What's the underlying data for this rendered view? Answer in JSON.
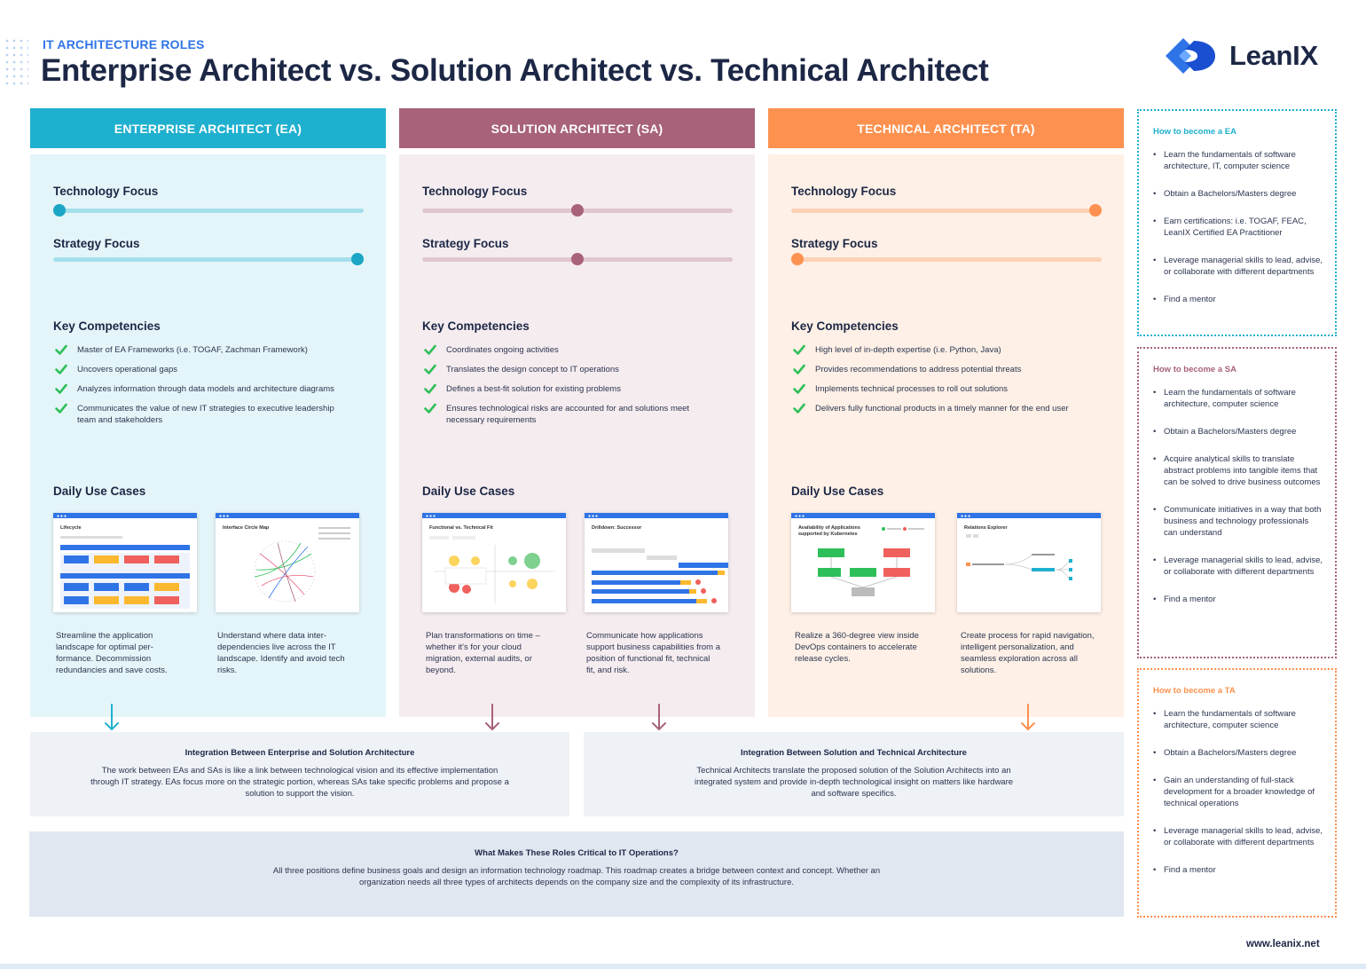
{
  "header": {
    "eyebrow": "IT ARCHITECTURE ROLES",
    "title": "Enterprise Architect vs. Solution Architect vs. Technical Architect",
    "logo_text": "LeanIX"
  },
  "colors": {
    "ea": "#1fb0cf",
    "sa": "#a8627a",
    "ta": "#fd914f",
    "brand": "#2f74e6",
    "navy": "#1c2745"
  },
  "labels": {
    "technology_focus": "Technology Focus",
    "strategy_focus": "Strategy Focus",
    "key_competencies": "Key Competencies",
    "daily_use_cases": "Daily Use Cases"
  },
  "columns": [
    {
      "header": "ENTERPRISE ARCHITECT (EA)",
      "technology_focus": 0,
      "strategy_focus": 1,
      "competencies": [
        "Master of EA Frameworks (i.e. TOGAF, Zachman Framework)",
        "Uncovers operational gaps",
        "Analyzes information through data models and architecture diagrams",
        "Communicates the value of new IT strategies to executive leadership team and stakeholders"
      ],
      "use_cases": [
        {
          "screen_title": "Lifecycle",
          "text": "Streamline the application landscape for optimal per-formance. Decommission redundancies and save costs."
        },
        {
          "screen_title": "Interface Circle Map",
          "text": "Understand where data inter-dependencies live across the IT landscape. Identify and avoid tech risks."
        }
      ]
    },
    {
      "header": "SOLUTION ARCHITECT (SA)",
      "technology_focus": 0.5,
      "strategy_focus": 0.5,
      "competencies": [
        "Coordinates ongoing activities",
        "Translates the design concept to IT operations",
        "Defines a best-fit solution for existing problems",
        "Ensures technological risks are accounted for and solutions meet necessary requirements"
      ],
      "use_cases": [
        {
          "screen_title": "Functional vs. Technical Fit",
          "text": "Plan transformations on time – whether it's for your cloud migration, external audits, or beyond."
        },
        {
          "screen_title": "Drilldown: Successor",
          "text": "Communicate how applications support business capabilities from a position of functional fit, technical fit, and risk."
        }
      ]
    },
    {
      "header": "TECHNICAL ARCHITECT (TA)",
      "technology_focus": 1,
      "strategy_focus": 0,
      "competencies": [
        "High level of in-depth expertise (i.e. Python, Java)",
        "Provides recommendations to address potential threats",
        "Implements technical processes to roll out solutions",
        "Delivers fully functional products in a timely manner for the end user"
      ],
      "use_cases": [
        {
          "screen_title": "Availability of Applications supported by Kubernetes",
          "text": "Realize a 360-degree view inside DevOps containers to accelerate release cycles."
        },
        {
          "screen_title": "Relations Explorer",
          "text": "Create process for rapid navigation, intelligent personalization, and seamless exploration across all solutions."
        }
      ]
    }
  ],
  "integration": [
    {
      "title": "Integration Between Enterprise and Solution Architecture",
      "text": "The work between EAs and SAs is like a link between technological vision and its effective implementation through IT strategy. EAs focus more on the strategic portion, whereas SAs take specific problems and propose a solution to support the vision."
    },
    {
      "title": "Integration Between Solution and Technical Architecture",
      "text": "Technical Architects translate the proposed solution of the Solution Architects into an integrated system and provide in-depth technological insight on matters like hardware and software specifics."
    }
  ],
  "critical": {
    "title": "What Makes These Roles Critical to IT Operations?",
    "text": "All three positions define business goals and design an information technology roadmap. This roadmap creates a bridge between context and concept. Whether an organization needs all three types of architects depends on the company size and the complexity of its infrastructure."
  },
  "sidebar": [
    {
      "title": "How to become a EA",
      "items": [
        "Learn the fundamentals of software architecture, IT, computer science",
        "Obtain a Bachelors/Masters degree",
        "Earn certifications: i.e. TOGAF, FEAC, LeanIX Certified EA Practitioner",
        "Leverage managerial skills to lead, advise, or collaborate with different departments",
        "Find a mentor"
      ]
    },
    {
      "title": "How to become a SA",
      "items": [
        "Learn the fundamentals of software architecture, computer science",
        "Obtain a Bachelors/Masters degree",
        "Acquire analytical skills to translate abstract problems into tangible items that can be solved to drive business outcomes",
        "Communicate initiatives in a way that both business and technology professionals can understand",
        "Leverage managerial skills to lead, advise, or collaborate with different departments",
        "Find a mentor"
      ]
    },
    {
      "title": "How to become a TA",
      "items": [
        "Learn the fundamentals of software architecture, computer science",
        "Obtain a Bachelors/Masters degree",
        "Gain an understanding of full-stack development for a broader knowledge of technical operations",
        "Leverage managerial skills to lead, advise, or collaborate with different departments",
        "Find a mentor"
      ]
    }
  ],
  "footer": {
    "url": "www.leanix.net"
  }
}
